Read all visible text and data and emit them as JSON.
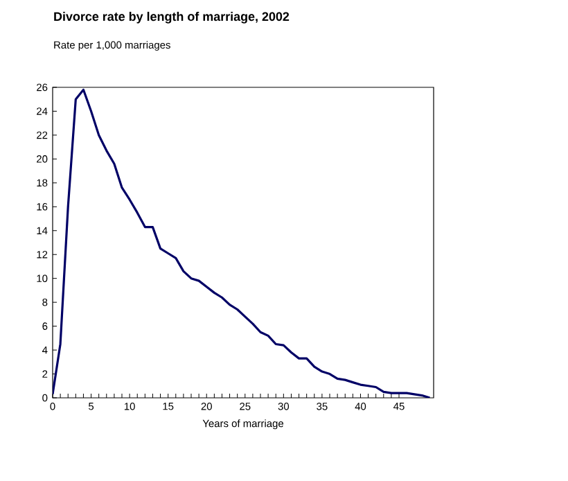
{
  "chart_data": {
    "type": "line",
    "title": "Divorce rate by length of marriage, 2002",
    "ylabel": "Rate per 1,000 marriages",
    "xlabel": "Years of marriage",
    "x": [
      0,
      1,
      2,
      3,
      4,
      5,
      6,
      7,
      8,
      9,
      10,
      11,
      12,
      13,
      14,
      15,
      16,
      17,
      18,
      19,
      20,
      21,
      22,
      23,
      24,
      25,
      26,
      27,
      28,
      29,
      30,
      31,
      32,
      33,
      34,
      35,
      36,
      37,
      38,
      39,
      40,
      41,
      42,
      43,
      44,
      45,
      46,
      47,
      48,
      49
    ],
    "series": [
      {
        "color": "#000066",
        "values": [
          0.3,
          4.5,
          16,
          25,
          25.8,
          24,
          22,
          20.7,
          19.6,
          17.6,
          16.6,
          15.5,
          14.3,
          14.3,
          12.5,
          12.1,
          11.7,
          10.6,
          10,
          9.8,
          9.3,
          8.8,
          8.4,
          7.8,
          7.4,
          6.8,
          6.2,
          5.5,
          5.2,
          4.5,
          4.4,
          3.8,
          3.3,
          3.3,
          2.6,
          2.2,
          2,
          1.6,
          1.5,
          1.3,
          1.1,
          1,
          0.9,
          0.5,
          0.4,
          0.4,
          0.4,
          0.3,
          0.2,
          0
        ]
      }
    ],
    "xlim": [
      0,
      49.5
    ],
    "ylim": [
      0,
      26
    ],
    "xticks": [
      0,
      5,
      10,
      15,
      20,
      25,
      30,
      35,
      40,
      45
    ],
    "yticks": [
      0,
      2,
      4,
      6,
      8,
      10,
      12,
      14,
      16,
      18,
      20,
      22,
      24,
      26
    ],
    "grid": false,
    "marker": "none",
    "line_style": "solid"
  }
}
